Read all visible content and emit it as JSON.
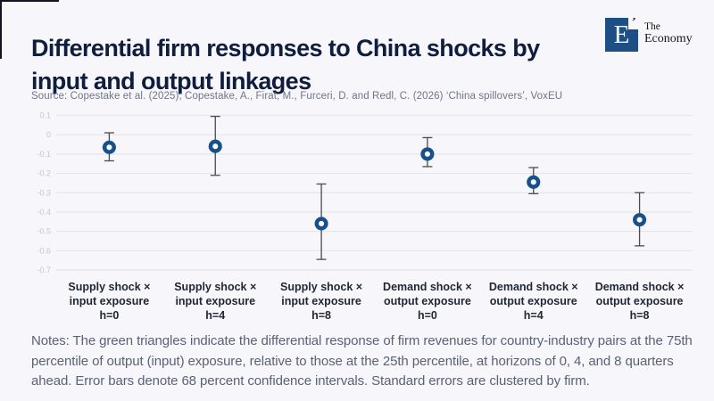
{
  "title": {
    "line1": "Differential firm responses to China shocks by",
    "line2": "input and output linkages"
  },
  "logo": {
    "letter": "E",
    "accent_mark": "’",
    "name_line1": "The",
    "name_line2": "Economy",
    "square_color": "#1d4e84"
  },
  "source": "Source: Copestake et al. (2025); Copestake, A., Firat, M., Furceri, D. and Redl, C. (2026) ‘China spillovers’, VoxEU",
  "notes": "Notes: The green triangles indicate the differential response of firm revenues for country-industry pairs at the 75th percentile of output (input) exposure, relative to those at the 25th percentile, at horizons of 0, 4, and 8 quarters ahead. Error bars denote 68 percent confidence intervals. Standard errors are clustered by firm.",
  "chart_data": {
    "type": "scatter",
    "marker_style": "open-circle",
    "title": "",
    "xlabel": "",
    "ylabel": "",
    "grid": true,
    "legend_position": "none",
    "ylim": [
      -0.7,
      0.1
    ],
    "ytick_values": [
      0.1,
      0,
      -0.1,
      -0.2,
      -0.3,
      -0.4,
      -0.5,
      -0.6,
      -0.7
    ],
    "ytick_labels": [
      "0.1",
      "0",
      "-0.1",
      "-0.2",
      "-0.3",
      "-0.4",
      "-0.5",
      "-0.6",
      "-0.7"
    ],
    "categories": [
      [
        "Supply shock ×",
        "input exposure",
        "h=0"
      ],
      [
        "Supply shock ×",
        "input exposure",
        "h=4"
      ],
      [
        "Supply shock ×",
        "input exposure",
        "h=8"
      ],
      [
        "Demand shock ×",
        "output exposure",
        "h=0"
      ],
      [
        "Demand shock ×",
        "output exposure",
        "h=4"
      ],
      [
        "Demand shock ×",
        "output exposure",
        "h=8"
      ]
    ],
    "values": [
      -0.065,
      -0.06,
      -0.46,
      -0.1,
      -0.245,
      -0.44
    ],
    "ci_high": [
      0.01,
      0.095,
      -0.255,
      -0.015,
      -0.17,
      -0.3
    ],
    "ci_low": [
      -0.135,
      -0.21,
      -0.645,
      -0.165,
      -0.305,
      -0.575
    ],
    "ci_level": "68 percent confidence intervals",
    "colors": {
      "marker": "#17518b",
      "error_bar": "#4b4b4b",
      "grid": "#e3e5ef",
      "tick_label": "#c2c8d7",
      "background": "#f7f6fb"
    }
  }
}
